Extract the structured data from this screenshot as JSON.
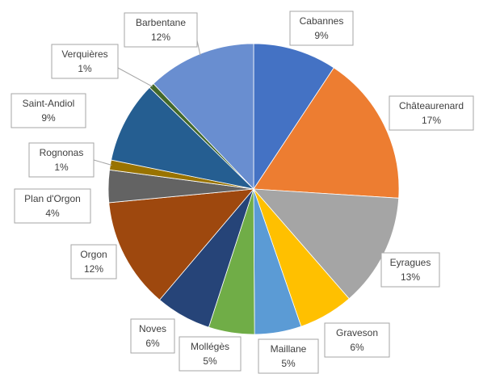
{
  "chart_data": {
    "type": "pie",
    "title": "",
    "start_angle_deg": 0,
    "direction": "clockwise",
    "slices": [
      {
        "name": "Cabannes",
        "value": 9.3,
        "percent_label": "9%",
        "color": "#4472C4"
      },
      {
        "name": "Châteaurenard",
        "value": 16.7,
        "percent_label": "17%",
        "color": "#ED7D31"
      },
      {
        "name": "Eyragues",
        "value": 12.6,
        "percent_label": "13%",
        "color": "#A5A5A5"
      },
      {
        "name": "Graveson",
        "value": 6.1,
        "percent_label": "6%",
        "color": "#FFC000"
      },
      {
        "name": "Maillane",
        "value": 5.2,
        "percent_label": "5%",
        "color": "#5B9BD5"
      },
      {
        "name": "Mollégès",
        "value": 5.1,
        "percent_label": "5%",
        "color": "#70AD47"
      },
      {
        "name": "Noves",
        "value": 6.2,
        "percent_label": "6%",
        "color": "#264478"
      },
      {
        "name": "Orgon",
        "value": 12.3,
        "percent_label": "12%",
        "color": "#9E480E"
      },
      {
        "name": "Plan d'Orgon",
        "value": 3.6,
        "percent_label": "4%",
        "color": "#636363"
      },
      {
        "name": "Rognonas",
        "value": 1.1,
        "percent_label": "1%",
        "color": "#997300"
      },
      {
        "name": "Saint-Andiol",
        "value": 9.1,
        "percent_label": "9%",
        "color": "#255E91"
      },
      {
        "name": "Verquières",
        "value": 0.6,
        "percent_label": "1%",
        "color": "#43682B"
      },
      {
        "name": "Barbentane",
        "value": 12.1,
        "percent_label": "12%",
        "color": "#698ED0"
      }
    ]
  }
}
